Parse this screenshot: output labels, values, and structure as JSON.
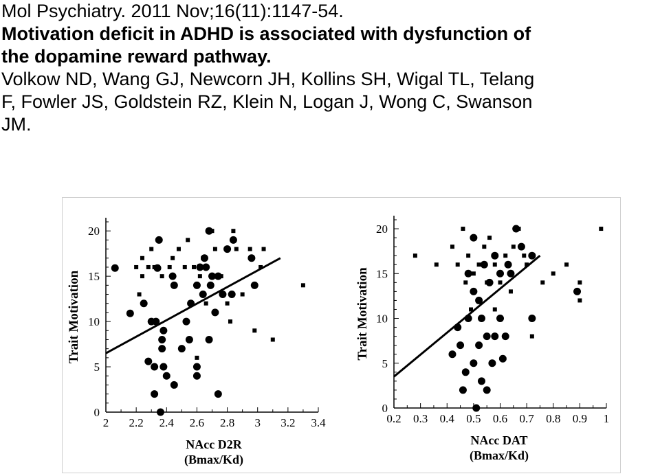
{
  "citation": {
    "journal_line": "Mol Psychiatry. 2011 Nov;16(11):1147-54.",
    "title_line1": "Motivation deficit in ADHD is associated with dysfunction of",
    "title_line2": "the dopamine reward pathway.",
    "authors_line1": "Volkow ND, Wang GJ, Newcorn JH, Kollins SH, Wigal TL, Telang",
    "authors_line2": "F, Fowler JS, Goldstein RZ, Klein N, Logan J, Wong C, Swanson",
    "authors_line3": "JM."
  },
  "chart_data": [
    {
      "type": "scatter",
      "ylabel": "Trait Motivation",
      "xlabel": "NAcc D2R",
      "xlabel2": "(Bmax/Kd)",
      "xlim": [
        2,
        3.4
      ],
      "ylim": [
        0,
        21
      ],
      "xticks": [
        "2",
        "2.2",
        "2.4",
        "2.6",
        "2.8",
        "3",
        "3.2",
        "3.4"
      ],
      "yticks": [
        "0",
        "5",
        "10",
        "15",
        "20"
      ],
      "fit_line": [
        [
          2.0,
          6.5
        ],
        [
          3.15,
          17.0
        ]
      ],
      "series": [
        {
          "marker": "circle",
          "points": [
            [
              2.06,
              15.9
            ],
            [
              2.16,
              10.9
            ],
            [
              2.25,
              12.0
            ],
            [
              2.28,
              5.6
            ],
            [
              2.3,
              10.0
            ],
            [
              2.32,
              2.0
            ],
            [
              2.32,
              5.0
            ],
            [
              2.33,
              10.0
            ],
            [
              2.34,
              15.9
            ],
            [
              2.35,
              19.0
            ],
            [
              2.36,
              0.0
            ],
            [
              2.37,
              7.0
            ],
            [
              2.37,
              8.0
            ],
            [
              2.38,
              9.0
            ],
            [
              2.38,
              5.0
            ],
            [
              2.4,
              4.0
            ],
            [
              2.44,
              15.0
            ],
            [
              2.45,
              14.0
            ],
            [
              2.45,
              3.0
            ],
            [
              2.5,
              7.0
            ],
            [
              2.53,
              10.0
            ],
            [
              2.55,
              8.0
            ],
            [
              2.56,
              12.0
            ],
            [
              2.6,
              14.0
            ],
            [
              2.6,
              5.0
            ],
            [
              2.6,
              4.0
            ],
            [
              2.62,
              16.0
            ],
            [
              2.64,
              13.0
            ],
            [
              2.65,
              17.0
            ],
            [
              2.66,
              16.0
            ],
            [
              2.68,
              20.0
            ],
            [
              2.68,
              8.0
            ],
            [
              2.69,
              14.0
            ],
            [
              2.7,
              15.0
            ],
            [
              2.72,
              11.0
            ],
            [
              2.74,
              15.0
            ],
            [
              2.74,
              2.0
            ],
            [
              2.77,
              13.0
            ],
            [
              2.8,
              18.0
            ],
            [
              2.83,
              13.0
            ],
            [
              2.84,
              19.0
            ],
            [
              2.98,
              14.0
            ],
            [
              2.96,
              17.0
            ]
          ]
        },
        {
          "marker": "square",
          "points": [
            [
              2.2,
              16.0
            ],
            [
              2.22,
              13.0
            ],
            [
              2.24,
              17.0
            ],
            [
              2.24,
              15.0
            ],
            [
              2.28,
              16.0
            ],
            [
              2.3,
              18.0
            ],
            [
              2.32,
              16.0
            ],
            [
              2.37,
              15.0
            ],
            [
              2.42,
              16.0
            ],
            [
              2.44,
              17.0
            ],
            [
              2.48,
              18.0
            ],
            [
              2.52,
              16.0
            ],
            [
              2.54,
              19.0
            ],
            [
              2.58,
              16.0
            ],
            [
              2.6,
              6.0
            ],
            [
              2.62,
              15.0
            ],
            [
              2.64,
              17.0
            ],
            [
              2.66,
              12.0
            ],
            [
              2.7,
              20.0
            ],
            [
              2.72,
              18.0
            ],
            [
              2.76,
              15.0
            ],
            [
              2.8,
              12.0
            ],
            [
              2.82,
              10.0
            ],
            [
              2.84,
              20.0
            ],
            [
              2.86,
              18.0
            ],
            [
              2.9,
              13.0
            ],
            [
              2.95,
              18.0
            ],
            [
              2.98,
              9.0
            ],
            [
              3.02,
              16.0
            ],
            [
              3.04,
              18.0
            ],
            [
              3.1,
              8.0
            ],
            [
              3.3,
              14.0
            ]
          ]
        }
      ]
    },
    {
      "type": "scatter",
      "ylabel": "Trait Motivation",
      "xlabel": "NAcc DAT",
      "xlabel2": "(Bmax/Kd)",
      "xlim": [
        0.2,
        1.0
      ],
      "ylim": [
        0,
        21
      ],
      "xticks": [
        "0.2",
        "0.3",
        "0.4",
        "0.5",
        "0.6",
        "0.7",
        "0.8",
        "0.9",
        "1"
      ],
      "yticks": [
        "0",
        "5",
        "10",
        "15",
        "20"
      ],
      "fit_line": [
        [
          0.2,
          3.5
        ],
        [
          0.75,
          17.0
        ]
      ],
      "series": [
        {
          "marker": "circle",
          "points": [
            [
              0.42,
              6.0
            ],
            [
              0.44,
              9.0
            ],
            [
              0.45,
              7.0
            ],
            [
              0.46,
              2.0
            ],
            [
              0.47,
              4.0
            ],
            [
              0.48,
              15.0
            ],
            [
              0.48,
              10.0
            ],
            [
              0.5,
              19.0
            ],
            [
              0.5,
              13.0
            ],
            [
              0.5,
              5.0
            ],
            [
              0.51,
              0.0
            ],
            [
              0.52,
              7.0
            ],
            [
              0.52,
              12.0
            ],
            [
              0.53,
              10.0
            ],
            [
              0.53,
              3.0
            ],
            [
              0.54,
              16.0
            ],
            [
              0.55,
              2.0
            ],
            [
              0.55,
              8.0
            ],
            [
              0.56,
              14.0
            ],
            [
              0.57,
              5.0
            ],
            [
              0.58,
              17.0
            ],
            [
              0.58,
              8.0
            ],
            [
              0.6,
              10.0
            ],
            [
              0.6,
              15.0
            ],
            [
              0.61,
              5.5
            ],
            [
              0.62,
              8.0
            ],
            [
              0.63,
              16.0
            ],
            [
              0.64,
              15.0
            ],
            [
              0.66,
              20.0
            ],
            [
              0.68,
              18.0
            ],
            [
              0.72,
              17.0
            ],
            [
              0.72,
              10.0
            ],
            [
              0.89,
              13.0
            ]
          ]
        },
        {
          "marker": "square",
          "points": [
            [
              0.28,
              17.0
            ],
            [
              0.36,
              16.0
            ],
            [
              0.42,
              18.0
            ],
            [
              0.44,
              16.0
            ],
            [
              0.46,
              20.0
            ],
            [
              0.47,
              14.0
            ],
            [
              0.48,
              17.0
            ],
            [
              0.49,
              11.0
            ],
            [
              0.5,
              15.0
            ],
            [
              0.52,
              16.0
            ],
            [
              0.54,
              18.0
            ],
            [
              0.55,
              14.0
            ],
            [
              0.56,
              19.0
            ],
            [
              0.58,
              16.0
            ],
            [
              0.58,
              11.0
            ],
            [
              0.6,
              14.0
            ],
            [
              0.62,
              17.0
            ],
            [
              0.64,
              13.0
            ],
            [
              0.65,
              18.0
            ],
            [
              0.67,
              20.0
            ],
            [
              0.69,
              17.0
            ],
            [
              0.7,
              16.0
            ],
            [
              0.72,
              8.0
            ],
            [
              0.76,
              14.0
            ],
            [
              0.8,
              15.0
            ],
            [
              0.85,
              16.0
            ],
            [
              0.9,
              14.0
            ],
            [
              0.9,
              12.0
            ],
            [
              0.98,
              20.0
            ]
          ]
        }
      ]
    }
  ]
}
